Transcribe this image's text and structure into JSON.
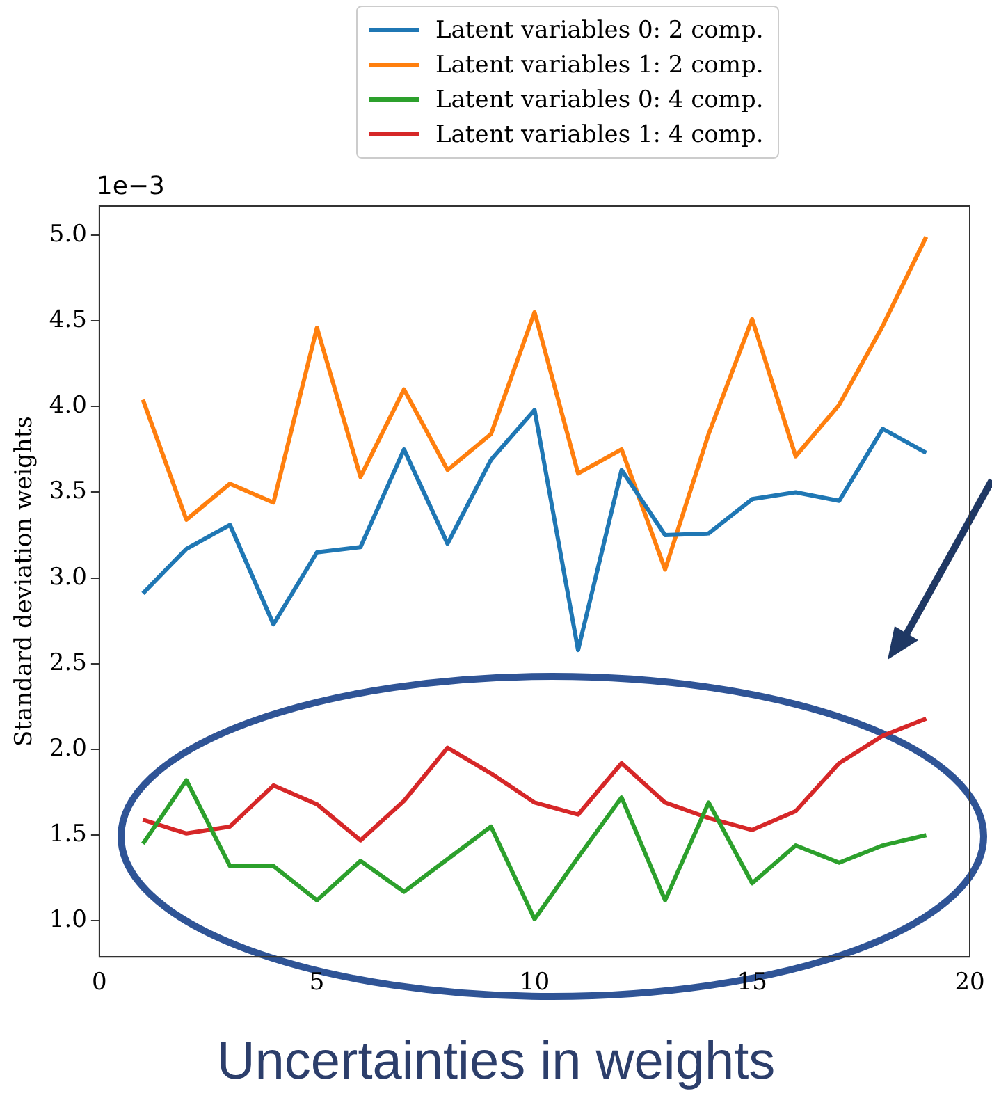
{
  "chart_data": {
    "type": "line",
    "ylabel": "Standard deviation weights",
    "x": [
      1,
      2,
      3,
      4,
      5,
      6,
      7,
      8,
      9,
      10,
      11,
      12,
      13,
      14,
      15,
      16,
      17,
      18,
      19
    ],
    "xlim": [
      0,
      20
    ],
    "xticks": [
      0,
      5,
      10,
      15,
      20
    ],
    "ylim": [
      0.79,
      5.17
    ],
    "yticks": [
      {
        "value": 1,
        "label": "1.0"
      },
      {
        "value": 1.5,
        "label": "1.5"
      },
      {
        "value": 2,
        "label": "2.0"
      },
      {
        "value": 2.5,
        "label": "2.5"
      },
      {
        "value": 3,
        "label": "3.0"
      },
      {
        "value": 3.5,
        "label": "3.5"
      },
      {
        "value": 4,
        "label": "4.0"
      },
      {
        "value": 4.5,
        "label": "4.5"
      },
      {
        "value": 5,
        "label": "5.0"
      }
    ],
    "series": [
      {
        "name": "Latent variables 0: 2 comp.",
        "color": "#1f77b4",
        "values": [
          2.91,
          3.17,
          3.31,
          2.73,
          3.15,
          3.18,
          3.75,
          3.2,
          3.69,
          3.98,
          2.58,
          3.63,
          3.25,
          3.26,
          3.46,
          3.5,
          3.45,
          3.87,
          3.73
        ]
      },
      {
        "name": "Latent variables 1: 2 comp.",
        "color": "#ff7f0e",
        "values": [
          4.04,
          3.34,
          3.55,
          3.44,
          4.46,
          3.59,
          4.1,
          3.63,
          3.84,
          4.55,
          3.61,
          3.75,
          3.05,
          3.84,
          4.51,
          3.71,
          4.01,
          4.47,
          4.99
        ]
      },
      {
        "name": "Latent variables 0: 4 comp.",
        "color": "#2ca02c",
        "values": [
          1.45,
          1.82,
          1.32,
          1.32,
          1.12,
          1.35,
          1.17,
          1.36,
          1.55,
          1.01,
          1.37,
          1.72,
          1.12,
          1.69,
          1.22,
          1.44,
          1.34,
          1.44,
          1.5
        ]
      },
      {
        "name": "Latent variables 1: 4 comp.",
        "color": "#d62728",
        "values": [
          1.59,
          1.51,
          1.55,
          1.79,
          1.68,
          1.47,
          1.7,
          2.01,
          1.86,
          1.69,
          1.62,
          1.92,
          1.69,
          1.6,
          1.53,
          1.64,
          1.92,
          2.08,
          2.18
        ]
      }
    ],
    "legend": "top",
    "grid": false,
    "marker": "none",
    "line_style": "solid",
    "annotations": [
      "1e−3",
      "Uncertainties in weights"
    ]
  }
}
